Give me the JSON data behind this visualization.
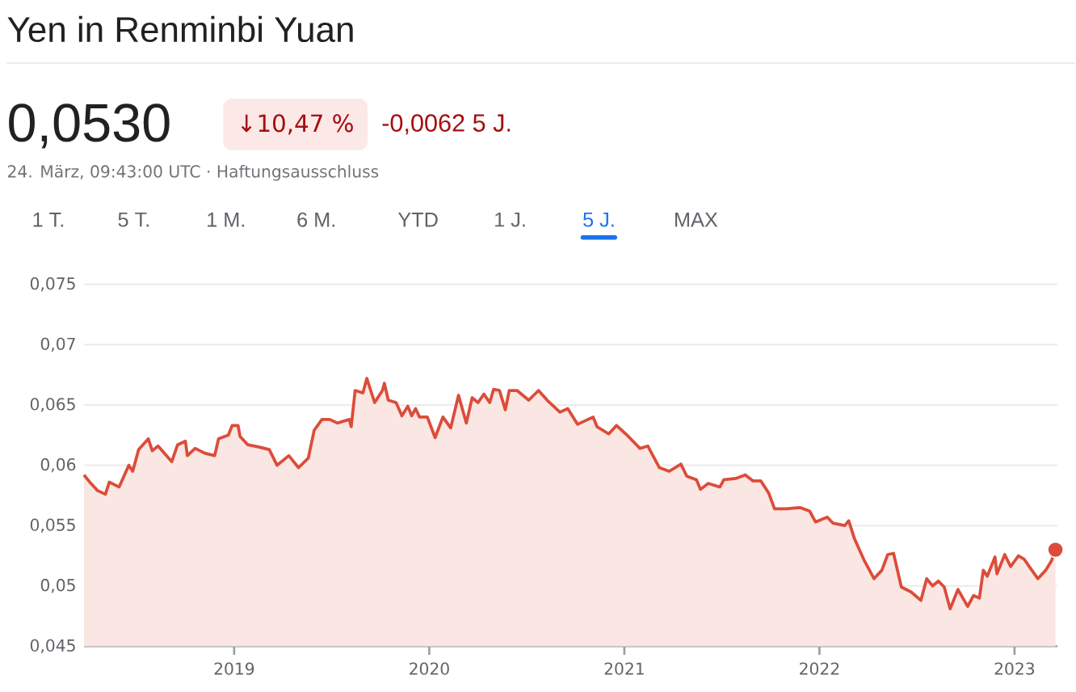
{
  "chart_data": {
    "type": "area",
    "title": "Yen in Renminbi Yuan",
    "annotations": [
      "0,0530",
      "↓10,47 %",
      "-0,0062 5 J.",
      "24. März, 09:43:00 UTC · Haftungsausschluss",
      "1 T.",
      "5 T.",
      "1 M.",
      "6 M.",
      "YTD",
      "1 J.",
      "5 J.",
      "MAX"
    ],
    "xlim": [
      2018.23,
      2023.22
    ],
    "xticks": [
      2019,
      2020,
      2021,
      2022,
      2023
    ],
    "ylim": [
      0.045,
      0.075
    ],
    "yticks": [
      {
        "value": 0.045,
        "label": "0,045"
      },
      {
        "value": 0.05,
        "label": "0,05"
      },
      {
        "value": 0.055,
        "label": "0,055"
      },
      {
        "value": 0.06,
        "label": "0,06"
      },
      {
        "value": 0.065,
        "label": "0,065"
      },
      {
        "value": 0.07,
        "label": "0,07"
      },
      {
        "value": 0.075,
        "label": "0,075"
      }
    ],
    "grid": "y",
    "series": [
      {
        "color": "#dc4c3a",
        "x": [
          2018.23,
          2018.26,
          2018.3,
          2018.34,
          2018.36,
          2018.41,
          2018.46,
          2018.48,
          2018.51,
          2018.56,
          2018.58,
          2018.61,
          2018.68,
          2018.71,
          2018.75,
          2018.76,
          2018.8,
          2018.85,
          2018.9,
          2018.92,
          2018.97,
          2018.99,
          2019.02,
          2019.03,
          2019.07,
          2019.13,
          2019.18,
          2019.22,
          2019.25,
          2019.28,
          2019.33,
          2019.38,
          2019.41,
          2019.45,
          2019.49,
          2019.53,
          2019.59,
          2019.6,
          2019.62,
          2019.66,
          2019.68,
          2019.72,
          2019.76,
          2019.77,
          2019.79,
          2019.83,
          2019.86,
          2019.89,
          2019.91,
          2019.93,
          2019.95,
          2019.99,
          2020.03,
          2020.07,
          2020.11,
          2020.15,
          2020.19,
          2020.22,
          2020.25,
          2020.28,
          2020.31,
          2020.33,
          2020.36,
          2020.39,
          2020.41,
          2020.45,
          2020.51,
          2020.56,
          2020.61,
          2020.67,
          2020.71,
          2020.76,
          2020.84,
          2020.86,
          2020.92,
          2020.96,
          2021.02,
          2021.08,
          2021.12,
          2021.18,
          2021.23,
          2021.29,
          2021.32,
          2021.37,
          2021.39,
          2021.43,
          2021.49,
          2021.51,
          2021.57,
          2021.62,
          2021.66,
          2021.7,
          2021.74,
          2021.77,
          2021.83,
          2021.9,
          2021.95,
          2021.98,
          2022.04,
          2022.07,
          2022.13,
          2022.15,
          2022.18,
          2022.23,
          2022.28,
          2022.32,
          2022.35,
          2022.38,
          2022.42,
          2022.47,
          2022.52,
          2022.55,
          2022.58,
          2022.61,
          2022.64,
          2022.67,
          2022.71,
          2022.76,
          2022.79,
          2022.82,
          2022.84,
          2022.86,
          2022.9,
          2022.91,
          2022.95,
          2022.98,
          2023.02,
          2023.05,
          2023.08,
          2023.12,
          2023.16,
          2023.19,
          2023.21
        ],
        "values": [
          0.0592,
          0.0586,
          0.0579,
          0.0576,
          0.0586,
          0.0582,
          0.06,
          0.0595,
          0.0613,
          0.0622,
          0.0612,
          0.0616,
          0.0603,
          0.0617,
          0.062,
          0.0608,
          0.0614,
          0.061,
          0.0608,
          0.0622,
          0.0625,
          0.0633,
          0.0633,
          0.0624,
          0.0617,
          0.0615,
          0.0613,
          0.06,
          0.0604,
          0.0608,
          0.0598,
          0.0606,
          0.0629,
          0.0638,
          0.0638,
          0.0635,
          0.0638,
          0.0632,
          0.0662,
          0.066,
          0.0672,
          0.0652,
          0.0662,
          0.0668,
          0.0654,
          0.0652,
          0.0641,
          0.0649,
          0.0641,
          0.0647,
          0.064,
          0.064,
          0.0623,
          0.064,
          0.0631,
          0.0658,
          0.0635,
          0.0656,
          0.0652,
          0.0659,
          0.0652,
          0.0663,
          0.0662,
          0.0646,
          0.0662,
          0.0662,
          0.0654,
          0.0662,
          0.0653,
          0.0644,
          0.0647,
          0.0634,
          0.064,
          0.0632,
          0.0626,
          0.0633,
          0.0624,
          0.0614,
          0.0616,
          0.0598,
          0.0595,
          0.0601,
          0.0591,
          0.0588,
          0.058,
          0.0585,
          0.0582,
          0.0588,
          0.0589,
          0.0592,
          0.0587,
          0.0587,
          0.0577,
          0.0564,
          0.0564,
          0.0565,
          0.0562,
          0.0553,
          0.0557,
          0.0552,
          0.055,
          0.0554,
          0.0539,
          0.0521,
          0.0506,
          0.0513,
          0.0526,
          0.0527,
          0.0499,
          0.0495,
          0.0488,
          0.0506,
          0.05,
          0.0504,
          0.0499,
          0.0481,
          0.0497,
          0.0483,
          0.0492,
          0.049,
          0.0513,
          0.0508,
          0.0524,
          0.051,
          0.0526,
          0.0516,
          0.0525,
          0.0522,
          0.0515,
          0.0506,
          0.0513,
          0.0521,
          0.053
        ]
      },
      {
        "type": "scatter",
        "color": "#dc4c3a",
        "x": [
          2023.21
        ],
        "values": [
          0.053
        ]
      }
    ]
  }
}
